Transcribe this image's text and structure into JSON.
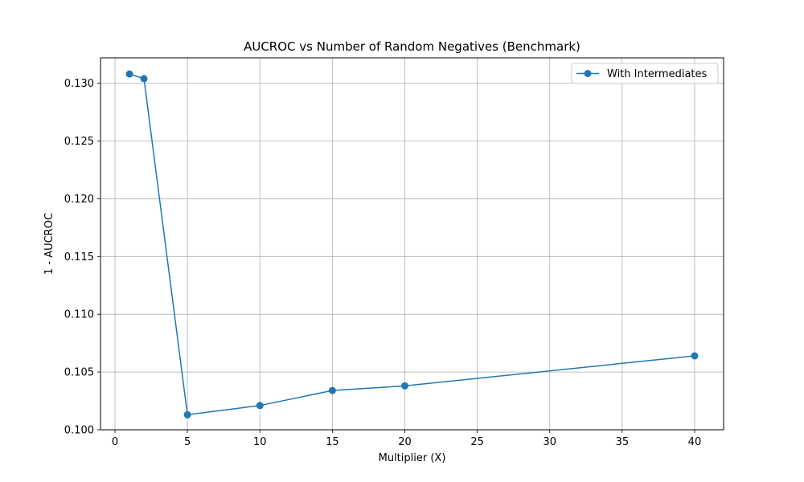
{
  "chart_data": {
    "type": "line",
    "title": "AUCROC vs Number of Random Negatives (Benchmark)",
    "xlabel": "Multiplier (X)",
    "ylabel": "1 - AUCROC",
    "xlim": [
      -1,
      42
    ],
    "ylim": [
      0.1,
      0.1322
    ],
    "xticks": [
      0,
      5,
      10,
      15,
      20,
      25,
      30,
      35,
      40
    ],
    "xtick_labels": [
      "0",
      "5",
      "10",
      "15",
      "20",
      "25",
      "30",
      "35",
      "40"
    ],
    "yticks": [
      0.1,
      0.105,
      0.11,
      0.115,
      0.12,
      0.125,
      0.13
    ],
    "ytick_labels": [
      "0.100",
      "0.105",
      "0.110",
      "0.115",
      "0.120",
      "0.125",
      "0.130"
    ],
    "grid": true,
    "legend_position": "top-right",
    "series": [
      {
        "name": "With Intermediates",
        "color": "#1f77b4",
        "marker": "circle",
        "x": [
          1,
          2,
          5,
          10,
          15,
          20,
          40
        ],
        "y": [
          0.1308,
          0.1304,
          0.1013,
          0.1021,
          0.1034,
          0.1038,
          0.1064
        ]
      }
    ]
  }
}
